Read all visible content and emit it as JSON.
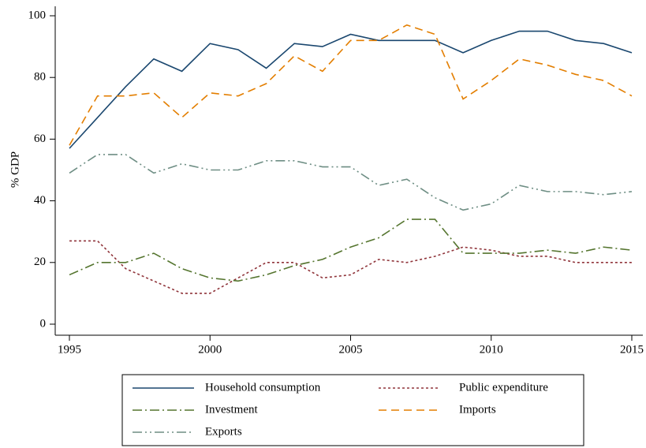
{
  "chart_data": {
    "type": "line",
    "ylabel": "% GDP",
    "x": [
      1995,
      1996,
      1997,
      1998,
      1999,
      2000,
      2001,
      2002,
      2003,
      2004,
      2005,
      2006,
      2007,
      2008,
      2009,
      2010,
      2011,
      2012,
      2013,
      2014,
      2015
    ],
    "xlim": [
      1995,
      2015
    ],
    "xticks": [
      1995,
      2000,
      2005,
      2010,
      2015
    ],
    "ylim": [
      0,
      100
    ],
    "yticks": [
      0,
      20,
      40,
      60,
      80,
      100
    ],
    "series": [
      {
        "name": "Household consumption",
        "color": "#1a476f",
        "style": "solid",
        "values": [
          57,
          67,
          77,
          86,
          82,
          91,
          89,
          83,
          91,
          90,
          94,
          92,
          92,
          92,
          88,
          92,
          95,
          95,
          92,
          91,
          88
        ]
      },
      {
        "name": "Public expenditure",
        "color": "#90353b",
        "style": "dot",
        "values": [
          27,
          27,
          18,
          14,
          10,
          10,
          15,
          20,
          20,
          15,
          16,
          21,
          20,
          22,
          25,
          24,
          22,
          22,
          20,
          20,
          20
        ]
      },
      {
        "name": "Investment",
        "color": "#55752f",
        "style": "dashdot",
        "values": [
          16,
          20,
          20,
          23,
          18,
          15,
          14,
          16,
          19,
          21,
          25,
          28,
          34,
          34,
          23,
          23,
          23,
          24,
          23,
          25,
          24
        ]
      },
      {
        "name": "Imports",
        "color": "#e37e00",
        "style": "dash",
        "values": [
          58,
          74,
          74,
          75,
          67,
          75,
          74,
          78,
          87,
          82,
          92,
          92,
          97,
          94,
          73,
          79,
          86,
          84,
          81,
          79,
          74
        ]
      },
      {
        "name": "Exports",
        "color": "#6e8e84",
        "style": "dashdotdot",
        "values": [
          49,
          55,
          55,
          49,
          52,
          50,
          50,
          53,
          53,
          51,
          51,
          45,
          47,
          41,
          37,
          39,
          45,
          43,
          43,
          42,
          43
        ]
      }
    ]
  }
}
